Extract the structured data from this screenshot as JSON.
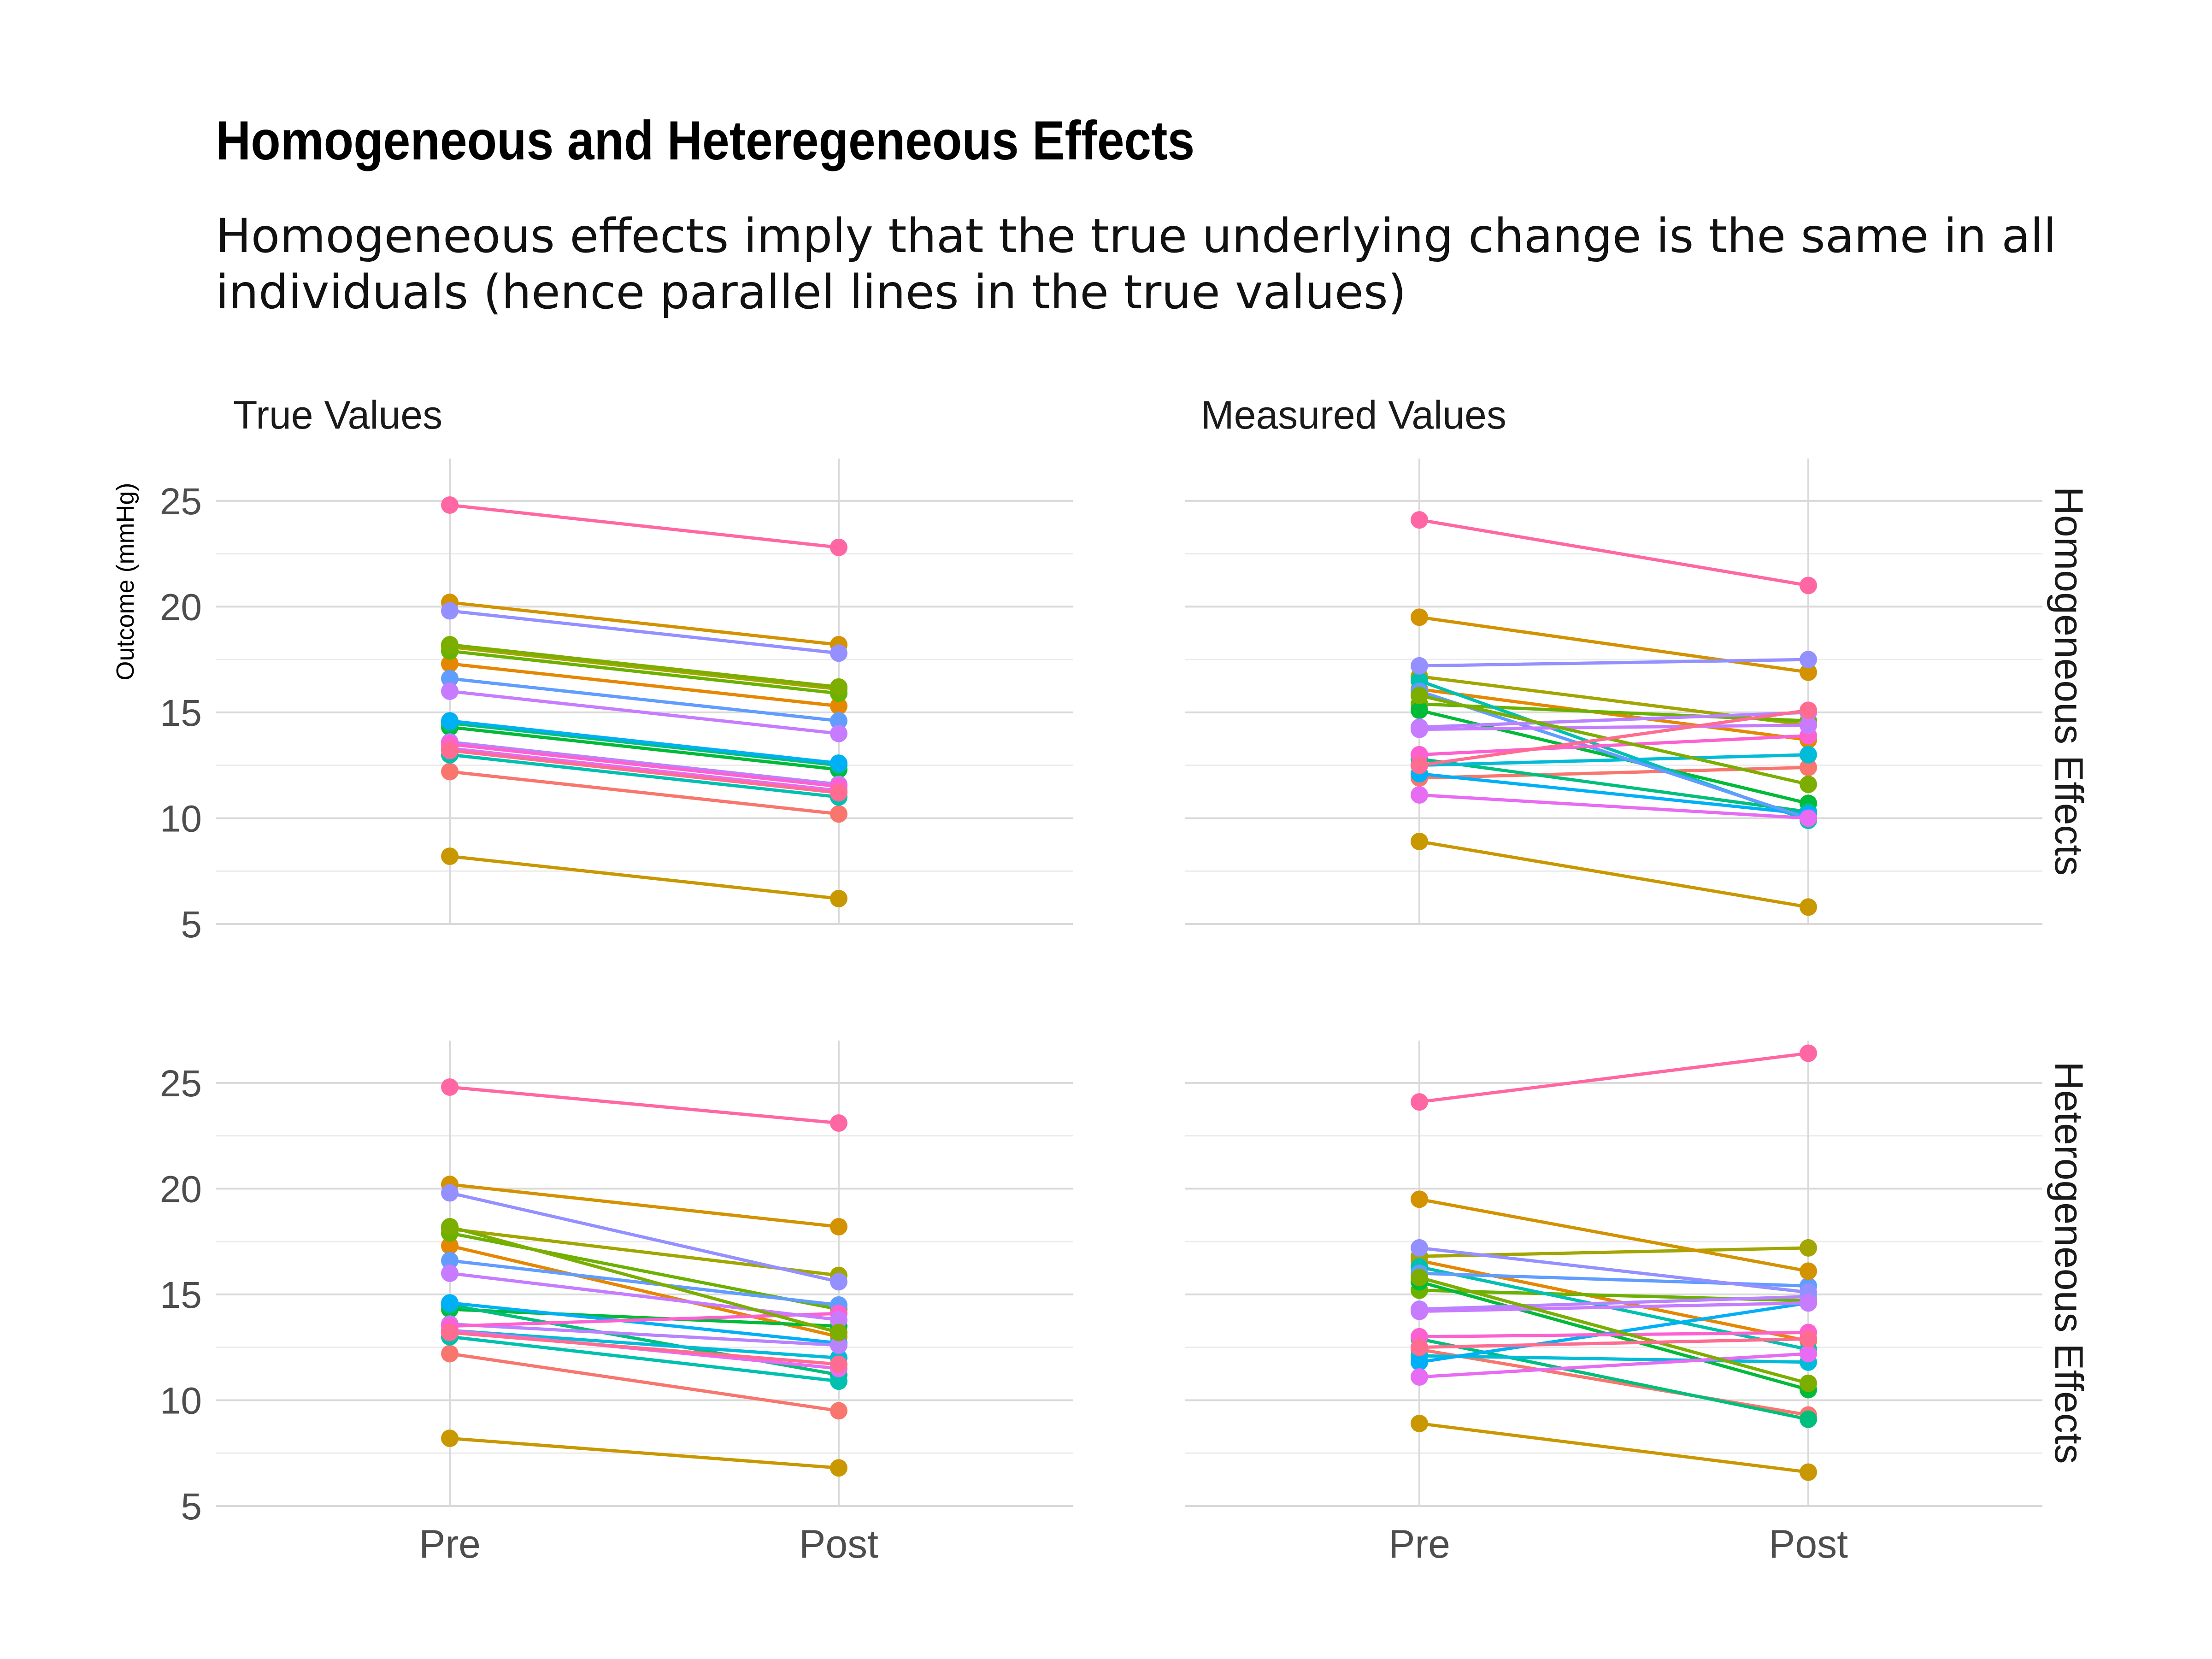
{
  "title": "Homogeneous and Heteregeneous Effects",
  "subtitle": "Homogeneous effects imply that the true underlying change is the same in all individuals (hence parallel lines in the true values)",
  "ylabel": "Outcome (mmHg)",
  "columns": [
    "True Values",
    "Measured Values"
  ],
  "rows": [
    "Homogeneous Effects",
    "Heterogeneous Effects"
  ],
  "chart_data": {
    "type": "line",
    "x": [
      "Pre",
      "Post"
    ],
    "ylim": [
      5,
      27
    ],
    "yticks": [
      5,
      10,
      15,
      20,
      25
    ],
    "grid": true,
    "legend": "none",
    "colors": [
      "#F8766D",
      "#E58700",
      "#C99800",
      "#A3A500",
      "#6BB100",
      "#00BA38",
      "#00BF7D",
      "#00C0AF",
      "#00BCD8",
      "#00B0F6",
      "#619CFF",
      "#B983FF",
      "#E76BF3",
      "#FD61D1",
      "#FF67A4",
      "#D39200",
      "#9590FF",
      "#C77CFF",
      "#7CAE00",
      "#FF6C91"
    ],
    "panels": [
      {
        "column": "True Values",
        "row": "Homogeneous Effects",
        "pre": [
          12.2,
          17.3,
          8.2,
          18.1,
          17.9,
          14.3,
          14.5,
          13.0,
          13.3,
          14.6,
          16.6,
          13.6,
          13.3,
          13.5,
          24.8,
          20.2,
          19.8,
          16.0,
          18.2,
          13.2
        ],
        "post": [
          10.2,
          15.3,
          6.2,
          16.1,
          15.9,
          12.3,
          12.5,
          11.0,
          11.3,
          12.6,
          14.6,
          11.6,
          11.3,
          11.5,
          22.8,
          18.2,
          17.8,
          14.0,
          16.2,
          11.2
        ]
      },
      {
        "column": "Measured Values",
        "row": "Homogeneous Effects",
        "pre": [
          11.9,
          16.1,
          8.9,
          16.7,
          15.4,
          15.1,
          12.8,
          16.5,
          12.5,
          12.1,
          16.0,
          14.3,
          11.1,
          13.0,
          24.1,
          19.5,
          17.2,
          14.2,
          15.8,
          12.5
        ],
        "post": [
          12.4,
          13.7,
          5.8,
          14.4,
          14.6,
          10.7,
          10.3,
          9.9,
          13.0,
          10.2,
          10.0,
          15.0,
          10.0,
          13.9,
          21.0,
          16.9,
          17.5,
          14.4,
          11.6,
          15.1
        ]
      },
      {
        "column": "True Values",
        "row": "Heterogeneous Effects",
        "pre": [
          12.2,
          17.3,
          8.2,
          18.1,
          17.9,
          14.3,
          14.5,
          13.0,
          13.3,
          14.6,
          16.6,
          13.6,
          13.3,
          13.5,
          24.8,
          20.2,
          19.8,
          16.0,
          18.2,
          13.2
        ],
        "post": [
          9.5,
          13.0,
          6.8,
          15.9,
          14.3,
          13.5,
          11.2,
          10.9,
          12.0,
          12.7,
          14.5,
          12.6,
          11.5,
          14.1,
          23.1,
          18.2,
          15.6,
          13.8,
          13.2,
          11.7
        ]
      },
      {
        "column": "Measured Values",
        "row": "Heterogeneous Effects",
        "pre": [
          12.4,
          16.6,
          8.9,
          16.8,
          15.2,
          15.6,
          12.9,
          16.3,
          12.1,
          11.8,
          16.0,
          14.3,
          11.1,
          13.0,
          24.1,
          19.5,
          17.2,
          14.2,
          15.8,
          12.5
        ],
        "post": [
          9.3,
          12.8,
          6.6,
          17.2,
          14.7,
          10.5,
          9.1,
          12.4,
          11.8,
          14.6,
          15.4,
          14.9,
          12.2,
          13.2,
          26.4,
          16.1,
          15.1,
          14.6,
          10.8,
          12.9
        ]
      }
    ]
  }
}
